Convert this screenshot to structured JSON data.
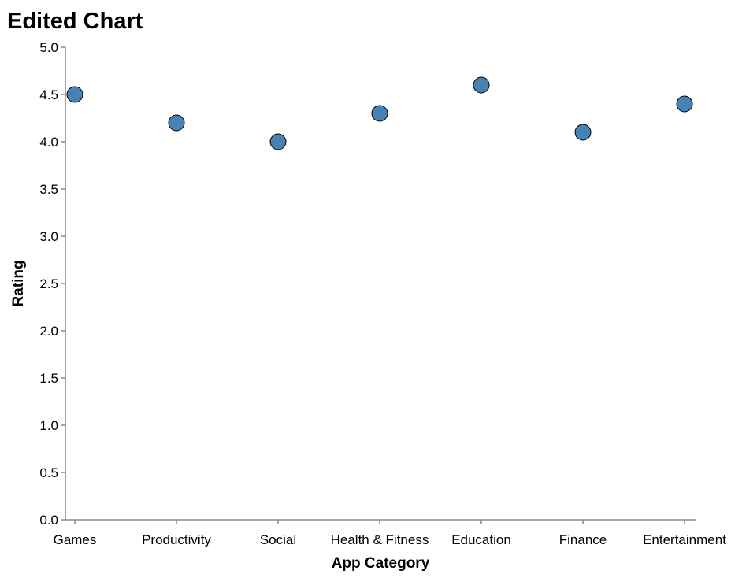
{
  "chart_data": {
    "type": "scatter",
    "title": "Edited Chart",
    "xlabel": "App Category",
    "ylabel": "Rating",
    "categories": [
      "Games",
      "Productivity",
      "Social",
      "Health & Fitness",
      "Education",
      "Finance",
      "Entertainment"
    ],
    "values": [
      4.5,
      4.2,
      4.0,
      4.3,
      4.6,
      4.1,
      4.4
    ],
    "ylim": [
      0,
      5
    ],
    "yticks": [
      "0.0",
      "0.5",
      "1.0",
      "1.5",
      "2.0",
      "2.5",
      "3.0",
      "3.5",
      "4.0",
      "4.5",
      "5.0"
    ],
    "grid": false,
    "point_color": "#4682b4"
  }
}
